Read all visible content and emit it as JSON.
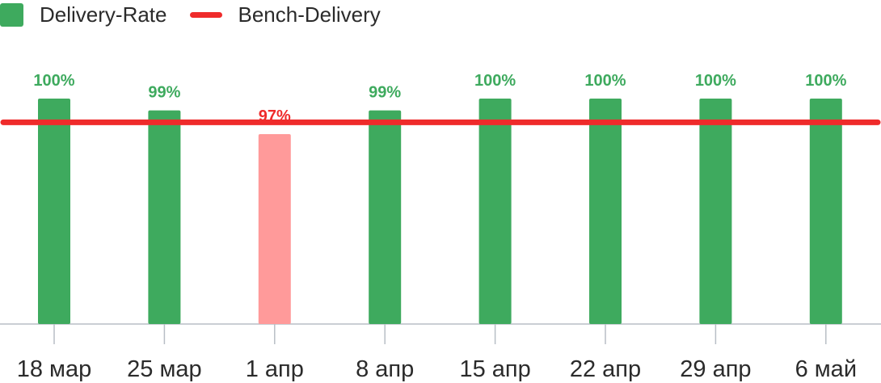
{
  "legend": {
    "bar_label": "Delivery-Rate",
    "line_label": "Bench-Delivery"
  },
  "colors": {
    "bar_ok": "#3eaa5e",
    "bar_below": "#ff9a9a",
    "label_ok": "#3eaa5e",
    "label_below": "#ef2b2b",
    "bench_line": "#ef2b2b",
    "axis": "#b8bec6",
    "text": "#2b2b2b"
  },
  "chart_data": {
    "type": "bar",
    "categories": [
      "18 мар",
      "25 мар",
      "1 апр",
      "8 апр",
      "15 апр",
      "22 апр",
      "29 апр",
      "6 май"
    ],
    "series": [
      {
        "name": "Delivery-Rate",
        "values": [
          100,
          99,
          97,
          99,
          100,
          100,
          100,
          100
        ],
        "labels": [
          "100%",
          "99%",
          "97%",
          "99%",
          "100%",
          "100%",
          "100%",
          "100%"
        ]
      },
      {
        "name": "Bench-Delivery",
        "type": "line",
        "value": 98
      }
    ],
    "ylim": [
      81,
      100
    ],
    "grid": false,
    "legend_position": "top-left"
  }
}
